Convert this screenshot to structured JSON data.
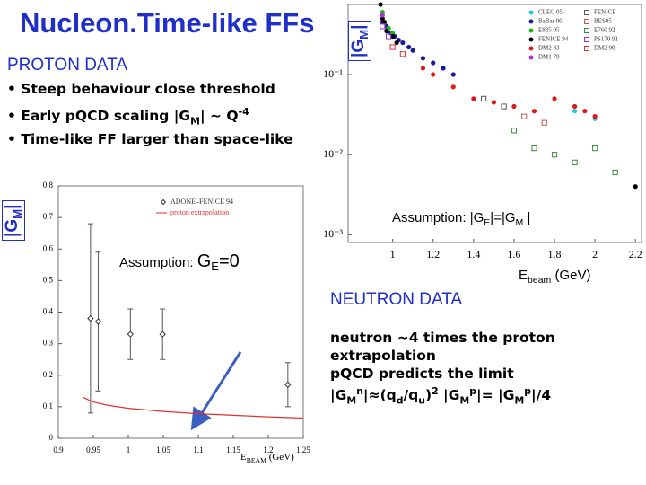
{
  "header": {
    "title": "Nucleon.Time-like FFs"
  },
  "proton": {
    "heading": "PROTON DATA",
    "bullets": [
      [
        "• Steep behaviour close threshold"
      ],
      [
        "• Early pQCD scaling |G",
        "M",
        "| ~ Q",
        "-4"
      ],
      [
        "• Time-like FF larger than space-like"
      ]
    ]
  },
  "neutron": {
    "heading": "NEUTRON DATA",
    "lines": [
      [
        "neutron ~4 times the proton"
      ],
      [
        "extrapolation"
      ],
      [
        "pQCD predicts the limit"
      ],
      [
        "|G",
        "M",
        "n",
        "|≈(q",
        "d",
        "/q",
        "u",
        ")",
        "2",
        " |G",
        "M",
        "p",
        "|= |G",
        "M",
        "p",
        "|/4"
      ]
    ]
  },
  "chart_data": [
    {
      "type": "scatter",
      "log_y": true,
      "y_label": [
        "|G",
        "M",
        "|"
      ],
      "x_label": [
        "E",
        "beam",
        " (GeV)"
      ],
      "annotation": [
        "Assumption: |G",
        "E",
        "|=|G",
        "M",
        " |"
      ],
      "xlim": [
        0.78,
        2.23
      ],
      "ylim": [
        0.0008,
        0.75
      ],
      "xticks": [
        1,
        1.2,
        1.4,
        1.6,
        1.8,
        2,
        2.2
      ],
      "yticks": [
        {
          "value": 0.1,
          "label": "10⁻¹"
        },
        {
          "value": 0.01,
          "label": "10⁻²"
        },
        {
          "value": 0.001,
          "label": "10⁻³"
        }
      ],
      "series": [
        {
          "name": "CLEO 05",
          "color": "#22c8e0",
          "marker": "circle",
          "x": [
            1.9,
            2.0
          ],
          "values": [
            0.035,
            0.028
          ]
        },
        {
          "name": "BaBar 06",
          "color": "#1a1aa0",
          "marker": "circle",
          "x": [
            0.95,
            0.97,
            0.99,
            1.01,
            1.03,
            1.05,
            1.08,
            1.1,
            1.15,
            1.2,
            1.25,
            1.3
          ],
          "values": [
            0.45,
            0.4,
            0.33,
            0.3,
            0.27,
            0.25,
            0.22,
            0.2,
            0.16,
            0.14,
            0.12,
            0.1
          ]
        },
        {
          "name": "E835 05",
          "color": "#18b818",
          "marker": "circle",
          "x": [
            0.95,
            0.96,
            0.98,
            1.0
          ],
          "values": [
            0.6,
            0.45,
            0.38,
            0.33
          ]
        },
        {
          "name": "FENICE 94",
          "color": "#000000",
          "marker": "circle",
          "x": [
            0.94,
            0.95,
            0.96,
            0.97,
            1.0,
            1.02,
            2.2
          ],
          "values": [
            0.75,
            0.5,
            0.45,
            0.35,
            0.3,
            0.25,
            0.004
          ]
        },
        {
          "name": "DM2 83",
          "color": "#e01818",
          "marker": "circle",
          "x": [
            1.15,
            1.2,
            1.3,
            1.4,
            1.5,
            1.6,
            1.7,
            1.8,
            1.9,
            1.95,
            2.0
          ],
          "values": [
            0.12,
            0.1,
            0.07,
            0.05,
            0.045,
            0.04,
            0.035,
            0.05,
            0.04,
            0.035,
            0.03
          ]
        },
        {
          "name": "DM1 79",
          "color": "#b030d0",
          "marker": "circle",
          "x": [
            0.95
          ],
          "values": [
            0.55
          ]
        },
        {
          "name": "FENICE",
          "color": "#555555",
          "marker": "square",
          "x": [
            1.45,
            1.55
          ],
          "values": [
            0.05,
            0.04
          ]
        },
        {
          "name": "BES05",
          "color": "#d05050",
          "marker": "square",
          "x": [
            1.65,
            1.75
          ],
          "values": [
            0.03,
            0.025
          ]
        },
        {
          "name": "E760 92",
          "color": "#3a8a3a",
          "marker": "square",
          "x": [
            1.6,
            1.7,
            1.8,
            1.9,
            2.0,
            2.1
          ],
          "values": [
            0.02,
            0.012,
            0.01,
            0.008,
            0.012,
            0.006
          ]
        },
        {
          "name": "PS170 91",
          "color": "#a030c0",
          "marker": "square",
          "x": [
            0.95,
            0.98
          ],
          "values": [
            0.4,
            0.3
          ]
        },
        {
          "name": "DM2 90",
          "color": "#e03030",
          "marker": "square",
          "x": [
            1.0,
            1.05
          ],
          "values": [
            0.22,
            0.18
          ]
        }
      ]
    },
    {
      "type": "scatter",
      "y_label": [
        "|G",
        "M",
        "|"
      ],
      "x_label": [
        "E",
        "BEAM",
        " (GeV)"
      ],
      "annotation": [
        "Assumption: ",
        "G",
        "E",
        "=0"
      ],
      "xlim": [
        0.9,
        1.25
      ],
      "ylim": [
        0,
        0.8
      ],
      "xticks": [
        0.9,
        0.95,
        1,
        1.05,
        1.1,
        1.15,
        1.2,
        1.25
      ],
      "yticks": [
        0,
        0.1,
        0.2,
        0.3,
        0.4,
        0.5,
        0.6,
        0.7,
        0.8
      ],
      "series": [
        {
          "name": "ADONE–FENICE 94",
          "color": "#333333",
          "marker": "diamond",
          "x": [
            0.946,
            0.957,
            1.003,
            1.049,
            1.228
          ],
          "values": [
            0.38,
            0.37,
            0.33,
            0.33,
            0.17
          ],
          "errors": [
            0.3,
            0.22,
            0.08,
            0.08,
            0.07
          ]
        },
        {
          "name": "proton extrapolation",
          "type": "line",
          "color": "#e03030",
          "x": [
            0.935,
            0.95,
            0.97,
            1.0,
            1.05,
            1.1,
            1.15,
            1.2,
            1.25
          ],
          "values": [
            0.13,
            0.115,
            0.105,
            0.095,
            0.085,
            0.078,
            0.073,
            0.068,
            0.064
          ]
        }
      ]
    }
  ]
}
